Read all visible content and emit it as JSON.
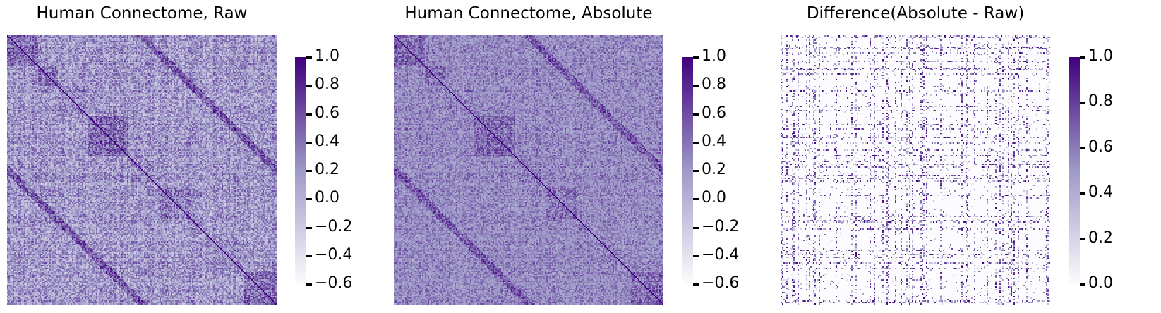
{
  "panels": [
    {
      "title": "Human Connectome, Raw",
      "colorbar_ticks": [
        "1.0",
        "0.8",
        "0.6",
        "0.4",
        "0.2",
        "0.0",
        "−0.2",
        "−0.4",
        "−0.6"
      ]
    },
    {
      "title": "Human Connectome, Absolute",
      "colorbar_ticks": [
        "1.0",
        "0.8",
        "0.6",
        "0.4",
        "0.2",
        "0.0",
        "−0.2",
        "−0.4",
        "−0.6"
      ]
    },
    {
      "title": "Difference(Absolute - Raw)",
      "colorbar_ticks": [
        "1.0",
        "0.8",
        "0.6",
        "0.4",
        "0.2",
        "0.0"
      ]
    }
  ],
  "chart_data": [
    {
      "type": "heatmap",
      "title": "Human Connectome, Raw",
      "colormap": "Purples",
      "vmin": -0.6,
      "vmax": 1.0,
      "colorbar_ticks": [
        1.0,
        0.8,
        0.6,
        0.4,
        0.2,
        0.0,
        -0.2,
        -0.4,
        -0.6
      ],
      "diagonal": true,
      "axes_visible": false
    },
    {
      "type": "heatmap",
      "title": "Human Connectome, Absolute",
      "colormap": "Purples",
      "vmin": -0.6,
      "vmax": 1.0,
      "colorbar_ticks": [
        1.0,
        0.8,
        0.6,
        0.4,
        0.2,
        0.0,
        -0.2,
        -0.4,
        -0.6
      ],
      "diagonal": true,
      "axes_visible": false
    },
    {
      "type": "heatmap",
      "title": "Difference(Absolute - Raw)",
      "colormap": "Purples",
      "vmin": 0.0,
      "vmax": 1.0,
      "colorbar_ticks": [
        1.0,
        0.8,
        0.6,
        0.4,
        0.2,
        0.0
      ],
      "sparse": true,
      "axes_visible": false
    }
  ],
  "colors": {
    "cmap_low": "#fcfbfd",
    "cmap_mid": "#9e9ac8",
    "cmap_high": "#3f007d"
  }
}
